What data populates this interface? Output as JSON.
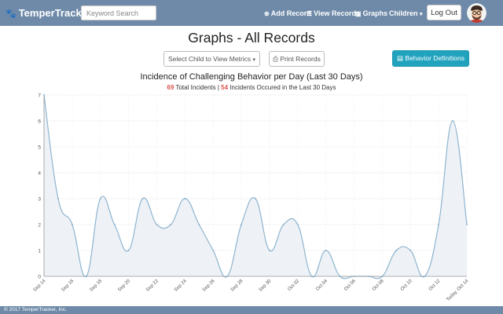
{
  "navbar": {
    "brand": "TemperTracker",
    "search_placeholder": "Keyword Search",
    "links": [
      {
        "label": "Add Record",
        "icon": "plus-circle-icon"
      },
      {
        "label": "View Records",
        "icon": "list-icon"
      },
      {
        "label": "Graphs",
        "icon": "bar-chart-icon"
      }
    ],
    "children_menu": "Children",
    "logout_label": "Log Out"
  },
  "page": {
    "title": "Graphs - All Records"
  },
  "controls": {
    "select_child": "Select Child to View Metrics",
    "print_records": "Print Records",
    "behavior_definitions": "Behavior Definitions"
  },
  "chart_data": {
    "type": "area",
    "title": "Incidence of Challenging Behavior per Day (Last 30 Days)",
    "subtitle": {
      "total_count": "69",
      "total_text": "Total Incidents",
      "recent_count": "54",
      "recent_text": "Incidents Occured in the Last 30 Days"
    },
    "x": [
      "Sep 14",
      "Sep 15",
      "Sep 16",
      "Sep 17",
      "Sep 18",
      "Sep 19",
      "Sep 20",
      "Sep 21",
      "Sep 22",
      "Sep 23",
      "Sep 24",
      "Sep 25",
      "Sep 26",
      "Sep 27",
      "Sep 28",
      "Sep 29",
      "Sep 30",
      "Oct 01",
      "Oct 02",
      "Oct 03",
      "Oct 04",
      "Oct 05",
      "Oct 06",
      "Oct 07",
      "Oct 08",
      "Oct 09",
      "Oct 10",
      "Oct 11",
      "Oct 12",
      "Oct 13",
      "Today, Oct 14"
    ],
    "x_tick_labels": [
      "Sep 14",
      "Sep 16",
      "Sep 18",
      "Sep 20",
      "Sep 22",
      "Sep 24",
      "Sep 26",
      "Sep 28",
      "Sep 30",
      "Oct 02",
      "Oct 04",
      "Oct 06",
      "Oct 08",
      "Oct 10",
      "Oct 12",
      "Today, Oct 14"
    ],
    "values": [
      7,
      3,
      2,
      0,
      3,
      2,
      1,
      3,
      2,
      2,
      3,
      2,
      1,
      0,
      2,
      3,
      1,
      2,
      2,
      0,
      1,
      0,
      0,
      0,
      0,
      1,
      1,
      0,
      2,
      6,
      2
    ],
    "ylim": [
      0,
      7
    ],
    "y_ticks": [
      "0",
      "1",
      "2",
      "3",
      "4",
      "5",
      "6",
      "7"
    ],
    "grid": true,
    "line_color": "#8eb4cf",
    "fill_color": "#eef2f6"
  },
  "footer": {
    "copyright": "© 2017 TemperTracker, Inc."
  }
}
